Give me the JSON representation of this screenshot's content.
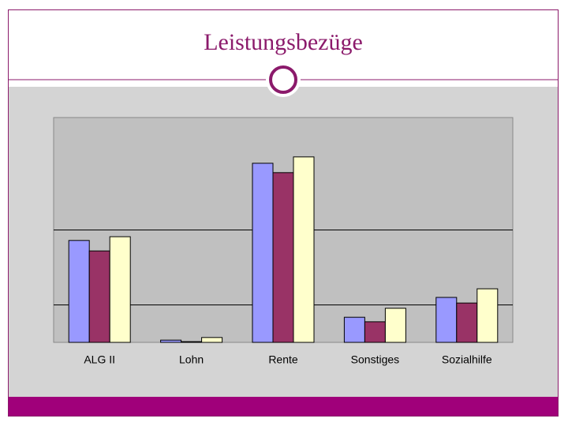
{
  "chart_data": {
    "type": "bar",
    "title": "Leistungsbezüge",
    "categories": [
      "ALG II",
      "Lohn",
      "Rente",
      "Sonstiges",
      "Sozialhilfe"
    ],
    "series": [
      {
        "color": "#9999ff",
        "values": [
          2.72,
          0.06,
          4.78,
          0.67,
          1.2
        ]
      },
      {
        "color": "#993366",
        "values": [
          2.44,
          0.02,
          4.53,
          0.55,
          1.05
        ]
      },
      {
        "color": "#ffffcc",
        "values": [
          2.82,
          0.13,
          4.95,
          0.91,
          1.43
        ]
      }
    ],
    "ylim": [
      0,
      6
    ],
    "grid_lines": [
      1,
      3
    ]
  }
}
